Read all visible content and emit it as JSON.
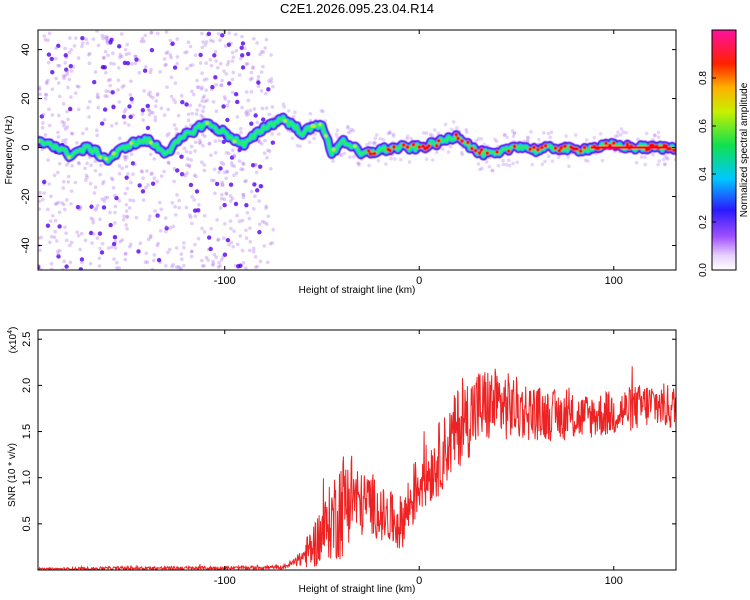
{
  "title": "C2E1.2026.095.23.04.R14",
  "colors": {
    "snr_line": "#ee2222",
    "track_core": "#ff0000",
    "track_mid": "#22ee66",
    "track_edge": "#5500ee",
    "scatter": "#b070ee"
  },
  "chart_data": [
    {
      "type": "heatmap",
      "name": "spectrogram",
      "xlabel": "Height of straight line (km)",
      "ylabel": "Frequency (Hz)",
      "xlim": [
        -196,
        132
      ],
      "ylim": [
        -50,
        48
      ],
      "xticks": [
        -100,
        0,
        100
      ],
      "xtick_labels": [
        "-100",
        "0",
        "100"
      ],
      "yticks": [
        40,
        20,
        0,
        -20,
        -40
      ],
      "ytick_labels": [
        "40",
        "20",
        "0",
        "-20",
        "-40"
      ],
      "colorbar": {
        "label": "Normalized spectral amplitude",
        "range": [
          0,
          1
        ],
        "ticks": [
          0.0,
          0.2,
          0.4,
          0.6,
          0.8
        ],
        "tick_labels": [
          "0.0",
          "0.2",
          "0.4",
          "0.6",
          "0.8"
        ],
        "colormap": "rainbow (white-purple-blue-cyan-green-yellow-red-magenta)"
      },
      "noise_region_x": [
        -196,
        -75
      ],
      "peak_frequency_track": {
        "x": [
          -190,
          -180,
          -170,
          -160,
          -150,
          -140,
          -130,
          -120,
          -110,
          -100,
          -90,
          -80,
          -70,
          -60,
          -50,
          -45,
          -40,
          -35,
          -30,
          -20,
          -10,
          0,
          10,
          20,
          30,
          40,
          50,
          60,
          70,
          80,
          90,
          100,
          110,
          120,
          130
        ],
        "y": [
          2,
          -3,
          0,
          -5,
          1,
          3,
          -2,
          5,
          10,
          6,
          1,
          8,
          12,
          6,
          10,
          -3,
          3,
          1,
          -3,
          -1,
          0,
          0,
          2,
          5,
          -2,
          -3,
          1,
          -1,
          0,
          -1,
          0,
          1,
          0,
          0,
          0
        ]
      }
    },
    {
      "type": "line",
      "name": "snr",
      "xlabel": "Height of straight line (km)",
      "ylabel": "SNR (10 * v/v)",
      "multiplier_label": "(x10",
      "multiplier_exp": "4",
      "xlim": [
        -196,
        132
      ],
      "ylim": [
        0,
        2.6
      ],
      "xticks": [
        -100,
        0,
        100
      ],
      "xtick_labels": [
        "-100",
        "0",
        "100"
      ],
      "yticks": [
        0.5,
        1.0,
        1.5,
        2.0,
        2.5
      ],
      "ytick_labels": [
        "0.5",
        "1.0",
        "1.5",
        "2.0",
        "2.5"
      ],
      "series": [
        {
          "name": "SNR",
          "x": [
            -196,
            -150,
            -100,
            -70,
            -62,
            -55,
            -48,
            -40,
            -35,
            -30,
            -25,
            -20,
            -15,
            -10,
            -5,
            0,
            5,
            10,
            15,
            20,
            25,
            30,
            40,
            50,
            60,
            80,
            100,
            120,
            132
          ],
          "y": [
            0.01,
            0.02,
            0.02,
            0.03,
            0.1,
            0.25,
            0.45,
            0.7,
            0.85,
            0.7,
            0.75,
            0.6,
            0.55,
            0.5,
            0.7,
            0.95,
            1.05,
            1.2,
            1.35,
            1.55,
            1.65,
            1.75,
            1.8,
            1.75,
            1.7,
            1.65,
            1.7,
            1.8,
            1.75
          ],
          "spread": [
            0.01,
            0.02,
            0.02,
            0.02,
            0.06,
            0.25,
            0.35,
            0.6,
            0.5,
            0.35,
            0.35,
            0.3,
            0.3,
            0.3,
            0.35,
            0.35,
            0.35,
            0.4,
            0.4,
            0.45,
            0.45,
            0.45,
            0.4,
            0.35,
            0.3,
            0.25,
            0.25,
            0.25,
            0.25
          ]
        }
      ]
    }
  ]
}
